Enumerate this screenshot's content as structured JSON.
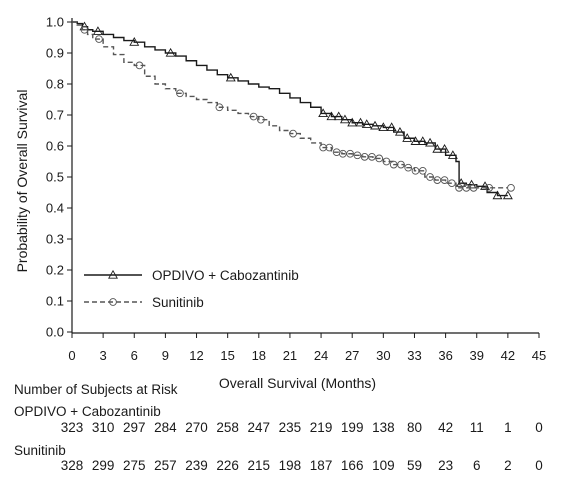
{
  "chart_data": {
    "type": "line",
    "xlabel": "Overall Survival (Months)",
    "ylabel": "Probability of Overall Survival",
    "xlim": [
      0,
      45
    ],
    "ylim": [
      0.0,
      1.0
    ],
    "x_ticks": [
      0,
      3,
      6,
      9,
      12,
      15,
      18,
      21,
      24,
      27,
      30,
      33,
      36,
      39,
      42,
      45
    ],
    "y_ticks": [
      "0.0",
      "0.1",
      "0.2",
      "0.3",
      "0.4",
      "0.5",
      "0.6",
      "0.7",
      "0.8",
      "0.9",
      "1.0"
    ],
    "legend_position": "lower-left",
    "series": [
      {
        "name": "OPDIVO + Cabozantinib",
        "line_style": "solid",
        "marker": "triangle",
        "color": "#1a1a1a",
        "x": [
          0,
          0.5,
          1,
          1.5,
          2,
          3,
          4,
          5,
          6,
          7,
          8,
          9,
          10,
          11,
          12,
          13,
          14,
          15,
          16,
          17,
          18,
          19,
          20,
          21,
          22,
          23,
          24,
          25,
          26,
          27,
          28,
          29,
          30,
          31,
          32,
          33,
          34,
          35,
          36,
          37,
          37.3,
          38,
          39,
          40,
          41,
          42
        ],
        "y": [
          1.0,
          0.995,
          0.985,
          0.975,
          0.97,
          0.96,
          0.95,
          0.94,
          0.935,
          0.92,
          0.91,
          0.9,
          0.89,
          0.875,
          0.86,
          0.845,
          0.83,
          0.82,
          0.81,
          0.8,
          0.79,
          0.785,
          0.77,
          0.755,
          0.74,
          0.725,
          0.705,
          0.695,
          0.685,
          0.675,
          0.67,
          0.665,
          0.66,
          0.645,
          0.625,
          0.615,
          0.61,
          0.59,
          0.57,
          0.55,
          0.48,
          0.475,
          0.47,
          0.45,
          0.44,
          0.44
        ],
        "censor_x": [
          1.2,
          2.5,
          6,
          9.5,
          15.3,
          24.2,
          25,
          25.7,
          26.3,
          27,
          27.8,
          28.4,
          29.2,
          30,
          30.8,
          31.6,
          32.3,
          33.1,
          33.8,
          34.5,
          35.2,
          35.9,
          36.7,
          37.5,
          38.5,
          39.8,
          41,
          42
        ]
      },
      {
        "name": "Sunitinib",
        "line_style": "dashed",
        "marker": "circle",
        "color": "#555555",
        "x": [
          0,
          0.5,
          1,
          1.5,
          2,
          3,
          4,
          5,
          6,
          7,
          8,
          9,
          10,
          11,
          12,
          13,
          14,
          15,
          16,
          17,
          18,
          19,
          20,
          21,
          22,
          23,
          24,
          25,
          26,
          27,
          28,
          29,
          30,
          31,
          32,
          33,
          34,
          35,
          36,
          37,
          38,
          39,
          40,
          41,
          42
        ],
        "y": [
          1.0,
          0.99,
          0.975,
          0.96,
          0.945,
          0.92,
          0.895,
          0.87,
          0.86,
          0.825,
          0.8,
          0.785,
          0.77,
          0.76,
          0.75,
          0.74,
          0.725,
          0.715,
          0.705,
          0.695,
          0.685,
          0.665,
          0.65,
          0.64,
          0.625,
          0.61,
          0.595,
          0.58,
          0.575,
          0.57,
          0.565,
          0.56,
          0.55,
          0.54,
          0.53,
          0.52,
          0.5,
          0.49,
          0.48,
          0.465,
          0.465,
          0.465,
          0.465,
          0.465,
          0.465
        ],
        "censor_x": [
          1.2,
          2.6,
          6.5,
          10.4,
          14.2,
          17.5,
          18.2,
          21.3,
          24.2,
          24.8,
          25.5,
          26.1,
          26.8,
          27.5,
          28.2,
          28.9,
          29.6,
          30.3,
          31,
          31.7,
          32.4,
          33.1,
          33.8,
          34.5,
          35.2,
          35.9,
          36.6,
          37.3,
          38,
          38.7,
          40.2,
          42.3
        ]
      }
    ],
    "at_risk": {
      "title": "Number of Subjects at Risk",
      "times": [
        0,
        3,
        6,
        9,
        12,
        15,
        18,
        21,
        24,
        27,
        30,
        33,
        36,
        39,
        42,
        45
      ],
      "rows": [
        {
          "label": "OPDIVO + Cabozantinib",
          "counts": [
            323,
            310,
            297,
            284,
            270,
            258,
            247,
            235,
            219,
            199,
            138,
            80,
            42,
            11,
            1,
            0
          ]
        },
        {
          "label": "Sunitinib",
          "counts": [
            328,
            299,
            275,
            257,
            239,
            226,
            215,
            198,
            187,
            166,
            109,
            59,
            23,
            6,
            2,
            0
          ]
        }
      ]
    }
  }
}
